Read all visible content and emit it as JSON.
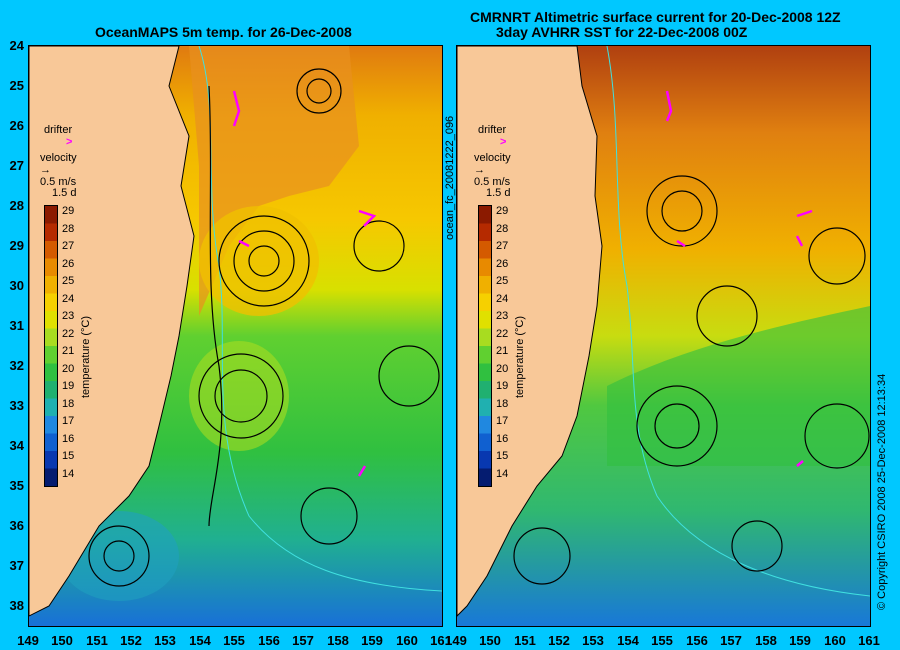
{
  "panel_left": {
    "title": "OceanMAPS 5m temp. for 26-Dec-2008",
    "legend": {
      "drifter": "drifter",
      "velocity": "velocity",
      "scale1": "0.5 m/s",
      "scale2": "1.5 d"
    },
    "colorbar_label": "temperature (°C)"
  },
  "panel_right": {
    "title_line1": "CMRNRT Altimetric surface current for 20-Dec-2008 12Z",
    "title_line2": "3day AVHRR SST for 22-Dec-2008 00Z",
    "legend": {
      "drifter": "drifter",
      "velocity": "velocity",
      "scale1": "0.5 m/s",
      "scale2": "1.5 d"
    },
    "colorbar_label": "temperature (°C)"
  },
  "file_id": "ocean_fc_20081222_096",
  "copyright": "© Copyright CSIRO 2008   25-Dec-2008 12:13:34",
  "lat_labels": [
    "24",
    "25",
    "26",
    "27",
    "28",
    "29",
    "30",
    "31",
    "32",
    "33",
    "34",
    "35",
    "36",
    "37",
    "38"
  ],
  "lon_labels": [
    "149",
    "150",
    "151",
    "152",
    "153",
    "154",
    "155",
    "156",
    "157",
    "158",
    "159",
    "160",
    "161"
  ],
  "colorbar_ticks": [
    "29",
    "28",
    "27",
    "26",
    "25",
    "24",
    "23",
    "22",
    "21",
    "20",
    "19",
    "18",
    "17",
    "16",
    "15",
    "14"
  ],
  "colorbar_colors": [
    "#8b1a00",
    "#b52a00",
    "#d45a00",
    "#e88a00",
    "#f0b000",
    "#f6d000",
    "#e0e000",
    "#a8dc20",
    "#60d030",
    "#30c040",
    "#20b070",
    "#20b0b0",
    "#2088e0",
    "#1060d0",
    "#0838b0",
    "#051c70"
  ],
  "colors": {
    "land": "#f8c898",
    "frame": "#00c8ff",
    "arrows": "#000000",
    "contours": "#40e0e0",
    "drifter": "#ff00ff"
  }
}
